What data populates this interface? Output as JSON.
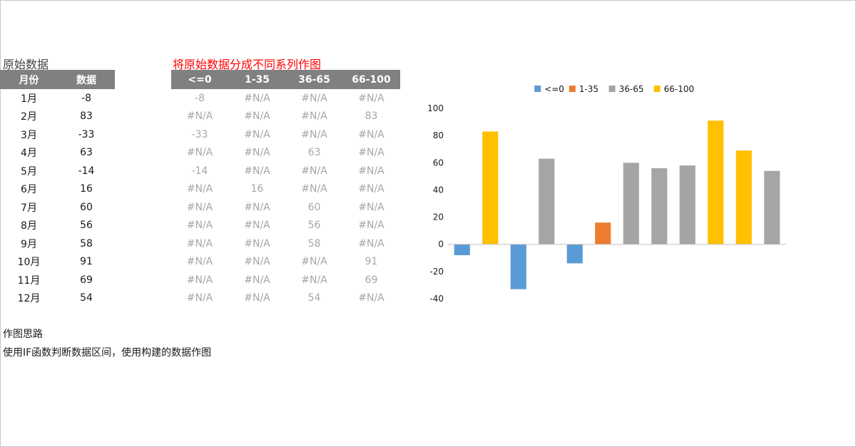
{
  "source": {
    "title": "原始数据",
    "headers": [
      "月份",
      "数据"
    ],
    "rows": [
      [
        "1月",
        "-8"
      ],
      [
        "2月",
        "83"
      ],
      [
        "3月",
        "-33"
      ],
      [
        "4月",
        "63"
      ],
      [
        "5月",
        "-14"
      ],
      [
        "6月",
        "16"
      ],
      [
        "7月",
        "60"
      ],
      [
        "8月",
        "56"
      ],
      [
        "9月",
        "58"
      ],
      [
        "10月",
        "91"
      ],
      [
        "11月",
        "69"
      ],
      [
        "12月",
        "54"
      ]
    ]
  },
  "series_table": {
    "title": "将原始数据分成不同系列作图",
    "headers": [
      "<=0",
      "1-35",
      "36-65",
      "66-100"
    ],
    "rows": [
      [
        "-8",
        "#N/A",
        "#N/A",
        "#N/A"
      ],
      [
        "#N/A",
        "#N/A",
        "#N/A",
        "83"
      ],
      [
        "-33",
        "#N/A",
        "#N/A",
        "#N/A"
      ],
      [
        "#N/A",
        "#N/A",
        "63",
        "#N/A"
      ],
      [
        "-14",
        "#N/A",
        "#N/A",
        "#N/A"
      ],
      [
        "#N/A",
        "16",
        "#N/A",
        "#N/A"
      ],
      [
        "#N/A",
        "#N/A",
        "60",
        "#N/A"
      ],
      [
        "#N/A",
        "#N/A",
        "56",
        "#N/A"
      ],
      [
        "#N/A",
        "#N/A",
        "58",
        "#N/A"
      ],
      [
        "#N/A",
        "#N/A",
        "#N/A",
        "91"
      ],
      [
        "#N/A",
        "#N/A",
        "#N/A",
        "69"
      ],
      [
        "#N/A",
        "#N/A",
        "54",
        "#N/A"
      ]
    ]
  },
  "notes": {
    "title": "作图思路",
    "text": "使用IF函数判断数据区间，使用构建的数据作图"
  },
  "chart_data": {
    "type": "bar",
    "categories": [
      "1月",
      "2月",
      "3月",
      "4月",
      "5月",
      "6月",
      "7月",
      "8月",
      "9月",
      "10月",
      "11月",
      "12月"
    ],
    "series": [
      {
        "name": "<=0",
        "color": "#5b9bd5",
        "values": [
          -8,
          null,
          -33,
          null,
          -14,
          null,
          null,
          null,
          null,
          null,
          null,
          null
        ]
      },
      {
        "name": "1-35",
        "color": "#ed7d31",
        "values": [
          null,
          null,
          null,
          null,
          null,
          16,
          null,
          null,
          null,
          null,
          null,
          null
        ]
      },
      {
        "name": "36-65",
        "color": "#a5a5a5",
        "values": [
          null,
          null,
          null,
          63,
          null,
          null,
          60,
          56,
          58,
          null,
          null,
          54
        ]
      },
      {
        "name": "66-100",
        "color": "#ffc000",
        "values": [
          null,
          83,
          null,
          null,
          null,
          null,
          null,
          null,
          null,
          91,
          69,
          null
        ]
      }
    ],
    "ylim": [
      -40,
      100
    ],
    "yticks": [
      100,
      80,
      60,
      40,
      20,
      0,
      -20,
      -40
    ],
    "x_tick_labels_shown": false,
    "legend": "top",
    "grid": false
  }
}
